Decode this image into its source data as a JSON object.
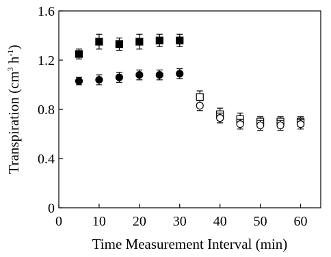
{
  "chart_data": {
    "type": "scatter",
    "xlabel": "Time Measurement Interval (min)",
    "ylabel": {
      "prefix": "Transpiration (cm",
      "sup1": "3",
      "mid": " h",
      "sup2": "-1",
      "suffix": ")"
    },
    "xlim": [
      0,
      65
    ],
    "ylim": [
      0,
      1.6
    ],
    "xticks": [
      "0",
      "10",
      "20",
      "30",
      "40",
      "50",
      "60"
    ],
    "yticks": [
      "0",
      "0.4",
      "0.8",
      "1.2",
      "1.6"
    ],
    "grid": false,
    "legend": "none",
    "series": [
      {
        "marker": "square-filled",
        "color": "#000000",
        "points": [
          {
            "x": 5,
            "y": 1.25,
            "err": 0.04
          },
          {
            "x": 10,
            "y": 1.35,
            "err": 0.06
          },
          {
            "x": 15,
            "y": 1.33,
            "err": 0.05
          },
          {
            "x": 20,
            "y": 1.35,
            "err": 0.06
          },
          {
            "x": 25,
            "y": 1.36,
            "err": 0.05
          },
          {
            "x": 30,
            "y": 1.36,
            "err": 0.05
          }
        ]
      },
      {
        "marker": "circle-filled",
        "color": "#000000",
        "points": [
          {
            "x": 5,
            "y": 1.03,
            "err": 0.03
          },
          {
            "x": 10,
            "y": 1.04,
            "err": 0.04
          },
          {
            "x": 15,
            "y": 1.06,
            "err": 0.04
          },
          {
            "x": 20,
            "y": 1.08,
            "err": 0.04
          },
          {
            "x": 25,
            "y": 1.08,
            "err": 0.04
          },
          {
            "x": 30,
            "y": 1.09,
            "err": 0.04
          }
        ]
      },
      {
        "marker": "square-open",
        "color": "#000000",
        "points": [
          {
            "x": 35,
            "y": 0.9,
            "err": 0.05
          },
          {
            "x": 40,
            "y": 0.76,
            "err": 0.05
          },
          {
            "x": 45,
            "y": 0.72,
            "err": 0.05
          },
          {
            "x": 50,
            "y": 0.7,
            "err": 0.04
          },
          {
            "x": 55,
            "y": 0.7,
            "err": 0.04
          },
          {
            "x": 60,
            "y": 0.7,
            "err": 0.04
          }
        ]
      },
      {
        "marker": "circle-open",
        "color": "#000000",
        "points": [
          {
            "x": 35,
            "y": 0.83,
            "err": 0.04
          },
          {
            "x": 40,
            "y": 0.73,
            "err": 0.04
          },
          {
            "x": 45,
            "y": 0.68,
            "err": 0.04
          },
          {
            "x": 50,
            "y": 0.67,
            "err": 0.04
          },
          {
            "x": 55,
            "y": 0.67,
            "err": 0.04
          },
          {
            "x": 60,
            "y": 0.68,
            "err": 0.04
          }
        ]
      }
    ]
  }
}
